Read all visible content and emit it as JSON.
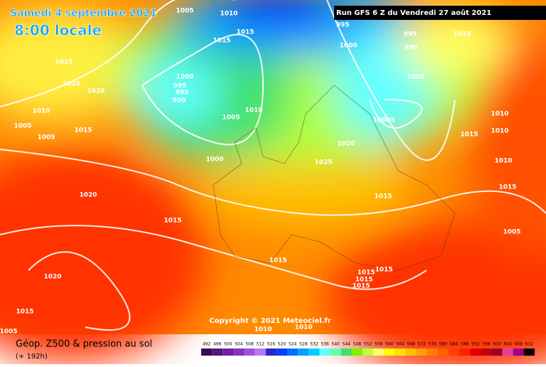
{
  "header": {
    "date": "Samedi 4 septembre 2021",
    "time": "8:00 locale",
    "run": "Run GFS 6 Z du Vendredi 27 août 2021"
  },
  "copyright": "Copyright © 2021 Meteociel.fr",
  "footer": {
    "title": "Géop. Z500 & pression au sol",
    "lead": "(+ 192h)"
  },
  "isobar_labels": [
    1005,
    1010,
    995,
    1015,
    1015,
    1000,
    995,
    990,
    1015,
    1025,
    1020,
    1020,
    1000,
    995,
    995,
    990,
    1005,
    1010,
    1005,
    1010,
    10005,
    1010,
    1005,
    1015,
    1005,
    1015,
    1010,
    1020,
    1000,
    1025,
    1010,
    1015,
    1020,
    1015,
    1015,
    1005,
    1015,
    1015,
    1015,
    1015,
    1015,
    1020,
    1015,
    1010,
    1010,
    1005
  ],
  "legend": {
    "ticks": [
      492,
      496,
      500,
      504,
      508,
      512,
      516,
      520,
      524,
      528,
      532,
      536,
      540,
      544,
      548,
      552,
      556,
      560,
      564,
      568,
      572,
      576,
      580,
      584,
      588,
      592,
      596,
      600,
      604,
      608,
      612
    ],
    "colors": [
      "#3a0a50",
      "#5a1480",
      "#7020a0",
      "#8a30c0",
      "#a050e0",
      "#b878f0",
      "#2828c8",
      "#0040ff",
      "#0070ff",
      "#00a0ff",
      "#00d0ff",
      "#60ffff",
      "#60ffb0",
      "#40e060",
      "#80f000",
      "#c0ff40",
      "#ffff70",
      "#ffff00",
      "#ffe000",
      "#ffc000",
      "#ffa000",
      "#ff8000",
      "#ff6000",
      "#ff4000",
      "#ff2000",
      "#e00000",
      "#c00010",
      "#a00020",
      "#e040a0",
      "#a00080",
      "#000000"
    ]
  }
}
